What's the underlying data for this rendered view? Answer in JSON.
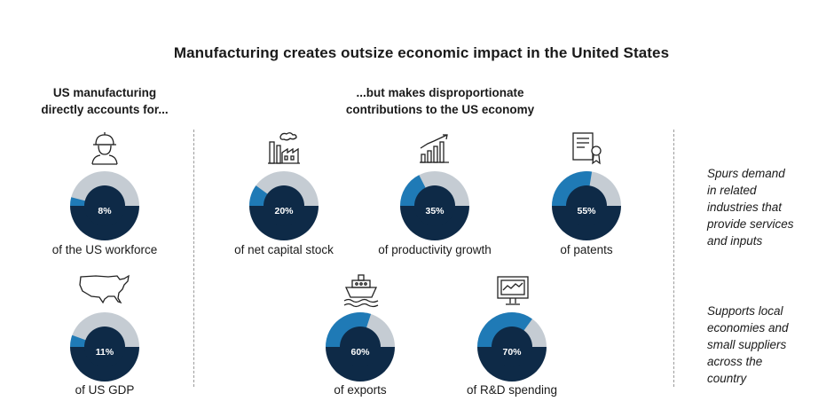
{
  "title": "Manufacturing creates outsize economic impact in the United States",
  "left_header": [
    "US manufacturing",
    "directly accounts for..."
  ],
  "mid_header": [
    "...but makes disproportionate",
    "contributions to the US economy"
  ],
  "colors": {
    "dark": "#0e2a47",
    "blue": "#1f7ab6",
    "grey": "#c5ccd3"
  },
  "metrics": [
    {
      "label": "8%",
      "caption": "of the US workforce",
      "value": 8,
      "icon": "worker-icon"
    },
    {
      "label": "11%",
      "caption": "of US GDP",
      "value": 11,
      "icon": "us-map-icon"
    },
    {
      "label": "20%",
      "caption": "of net capital stock",
      "value": 20,
      "icon": "factory-icon"
    },
    {
      "label": "35%",
      "caption": "of productivity growth",
      "value": 35,
      "icon": "growth-chart-icon"
    },
    {
      "label": "55%",
      "caption": "of patents",
      "value": 55,
      "icon": "certificate-icon"
    },
    {
      "label": "60%",
      "caption": "of exports",
      "value": 60,
      "icon": "ship-icon"
    },
    {
      "label": "70%",
      "caption": "of R&D spending",
      "value": 70,
      "icon": "monitor-icon"
    }
  ],
  "side_notes": [
    [
      "Spurs demand",
      "in related",
      "industries that",
      "provide services",
      "and inputs"
    ],
    [
      "Supports local",
      "economies and",
      "small suppliers",
      "across the",
      "country"
    ]
  ]
}
